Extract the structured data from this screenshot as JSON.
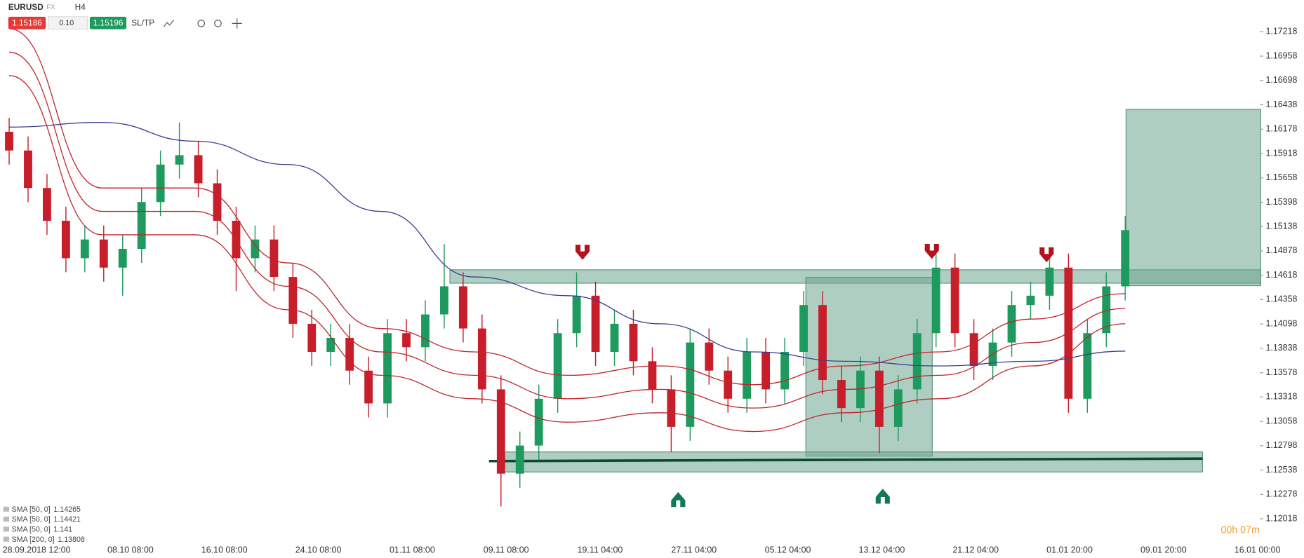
{
  "header": {
    "symbol": "EURUSD",
    "market": "FX",
    "timeframe": "H4",
    "sell_price": "1.15186",
    "volume": "0.10",
    "buy_price": "1.15196",
    "sltp": "SL/TP"
  },
  "chart_data": {
    "type": "candlestick",
    "ylim": [
      1.1176,
      1.17557
    ],
    "yticks": [
      1.17218,
      1.16958,
      1.16698,
      1.16438,
      1.16178,
      1.15918,
      1.15658,
      1.15398,
      1.15138,
      1.14878,
      1.14618,
      1.14358,
      1.14098,
      1.13838,
      1.13578,
      1.13318,
      1.13058,
      1.12798,
      1.12538,
      1.12278,
      1.12018
    ],
    "x_labels": [
      "28.09.2018 12:00",
      "08.10 08:00",
      "16.10 08:00",
      "24.10 08:00",
      "01.11 08:00",
      "09.11 08:00",
      "19.11 04:00",
      "27.11 04:00",
      "05.12 04:00",
      "13.12 04:00",
      "21.12 04:00",
      "01.01 20:00",
      "09.01 20:00",
      "16.01 00:00"
    ],
    "up_color": "#1e9a5e",
    "down_color": "#c81e2b",
    "open": [
      1.1615,
      1.1595,
      1.1555,
      1.152,
      1.148,
      1.15,
      1.147,
      1.149,
      1.154,
      1.158,
      1.159,
      1.156,
      1.152,
      1.148,
      1.15,
      1.146,
      1.141,
      1.138,
      1.1395,
      1.136,
      1.1325,
      1.14,
      1.1385,
      1.142,
      1.145,
      1.1405,
      1.134,
      1.125,
      1.128,
      1.133,
      1.14,
      1.144,
      1.138,
      1.141,
      1.137,
      1.134,
      1.13,
      1.139,
      1.136,
      1.133,
      1.138,
      1.134,
      1.138,
      1.143,
      1.135,
      1.132,
      1.136,
      1.13,
      1.134,
      1.14,
      1.147,
      1.14,
      1.1365,
      1.139,
      1.143,
      1.144,
      1.147,
      1.133,
      1.14,
      1.145
    ],
    "high": [
      1.163,
      1.161,
      1.157,
      1.1535,
      1.1515,
      1.1515,
      1.1505,
      1.1555,
      1.1595,
      1.1625,
      1.1605,
      1.1575,
      1.1535,
      1.1515,
      1.1515,
      1.1475,
      1.1425,
      1.141,
      1.141,
      1.1375,
      1.1415,
      1.1415,
      1.1435,
      1.1495,
      1.1465,
      1.142,
      1.1355,
      1.1295,
      1.1345,
      1.1415,
      1.1465,
      1.1455,
      1.1425,
      1.1425,
      1.1385,
      1.1355,
      1.1405,
      1.1405,
      1.1375,
      1.1395,
      1.1395,
      1.1395,
      1.1445,
      1.1445,
      1.1365,
      1.1375,
      1.1375,
      1.1355,
      1.1415,
      1.1485,
      1.1485,
      1.1415,
      1.1405,
      1.1445,
      1.1455,
      1.1485,
      1.1485,
      1.1415,
      1.1465,
      1.1525
    ],
    "low": [
      1.158,
      1.154,
      1.1505,
      1.1465,
      1.1465,
      1.1455,
      1.144,
      1.1475,
      1.1525,
      1.1565,
      1.1545,
      1.1505,
      1.1445,
      1.1465,
      1.1445,
      1.1395,
      1.1365,
      1.1365,
      1.1345,
      1.131,
      1.131,
      1.137,
      1.137,
      1.1405,
      1.139,
      1.1325,
      1.1215,
      1.1235,
      1.1265,
      1.1315,
      1.1385,
      1.1365,
      1.1365,
      1.1355,
      1.1325,
      1.1273,
      1.1285,
      1.1345,
      1.1315,
      1.1315,
      1.1325,
      1.1325,
      1.1365,
      1.1335,
      1.1305,
      1.1305,
      1.1272,
      1.1285,
      1.1325,
      1.1385,
      1.1385,
      1.135,
      1.135,
      1.1375,
      1.1415,
      1.1425,
      1.1315,
      1.1315,
      1.1385,
      1.1435
    ],
    "close": [
      1.1595,
      1.1555,
      1.152,
      1.148,
      1.15,
      1.147,
      1.149,
      1.154,
      1.158,
      1.159,
      1.156,
      1.152,
      1.148,
      1.15,
      1.146,
      1.141,
      1.138,
      1.1395,
      1.136,
      1.1325,
      1.14,
      1.1385,
      1.142,
      1.145,
      1.1405,
      1.134,
      1.125,
      1.128,
      1.133,
      1.14,
      1.144,
      1.138,
      1.141,
      1.137,
      1.134,
      1.13,
      1.139,
      1.136,
      1.133,
      1.138,
      1.134,
      1.138,
      1.143,
      1.135,
      1.132,
      1.136,
      1.13,
      1.134,
      1.14,
      1.147,
      1.14,
      1.1365,
      1.139,
      1.143,
      1.144,
      1.147,
      1.133,
      1.14,
      1.145,
      1.151
    ],
    "indicators": [
      {
        "name": "SMA [50, 0]",
        "value": 1.14265,
        "color": "#c0262c",
        "values": [
          1.17,
          1.153,
          1.153,
          1.145,
          1.138,
          1.1355,
          1.133,
          1.134,
          1.132,
          1.134,
          1.1355,
          1.139,
          1.14265
        ]
      },
      {
        "name": "SMA [50, 0]",
        "value": 1.14421,
        "color": "#c0262c",
        "values": [
          1.1725,
          1.1555,
          1.1555,
          1.1475,
          1.1405,
          1.138,
          1.1355,
          1.1365,
          1.1345,
          1.1365,
          1.138,
          1.1415,
          1.14421
        ]
      },
      {
        "name": "SMA [50, 0]",
        "value": 1.141,
        "color": "#c0262c",
        "values": [
          1.1675,
          1.1505,
          1.1505,
          1.1425,
          1.1355,
          1.133,
          1.1305,
          1.1315,
          1.1295,
          1.1315,
          1.133,
          1.1365,
          1.141
        ]
      },
      {
        "name": "SMA [200, 0]",
        "value": 1.13808,
        "color": "#3a3f8f",
        "values": [
          1.162,
          1.1625,
          1.1605,
          1.158,
          1.153,
          1.146,
          1.144,
          1.141,
          1.138,
          1.137,
          1.1365,
          1.137,
          1.13808
        ]
      }
    ]
  },
  "timer": "00h 07m"
}
